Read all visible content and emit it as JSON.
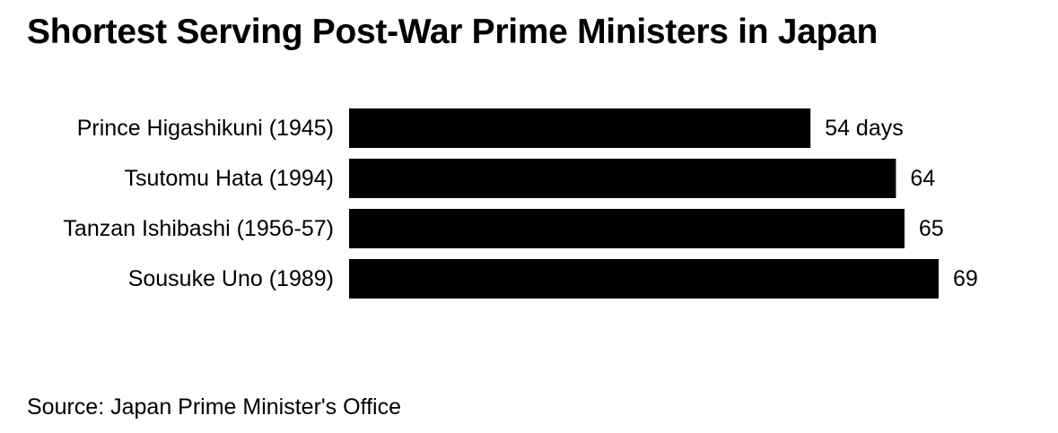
{
  "chart_data": {
    "type": "bar",
    "orientation": "horizontal",
    "title": "Shortest Serving Post-War Prime Ministers in Japan",
    "categories": [
      "Prince Higashikuni (1945)",
      "Tsutomu Hata (1994)",
      "Tanzan Ishibashi (1956-57)",
      "Sousuke Uno (1989)"
    ],
    "values": [
      54,
      64,
      65,
      69
    ],
    "value_labels": [
      "54 days",
      "64",
      "65",
      "69"
    ],
    "xlim": [
      0,
      69
    ],
    "bar_color": "#000000",
    "grid": false,
    "legend": "none",
    "source": "Source: Japan Prime Minister's Office"
  }
}
